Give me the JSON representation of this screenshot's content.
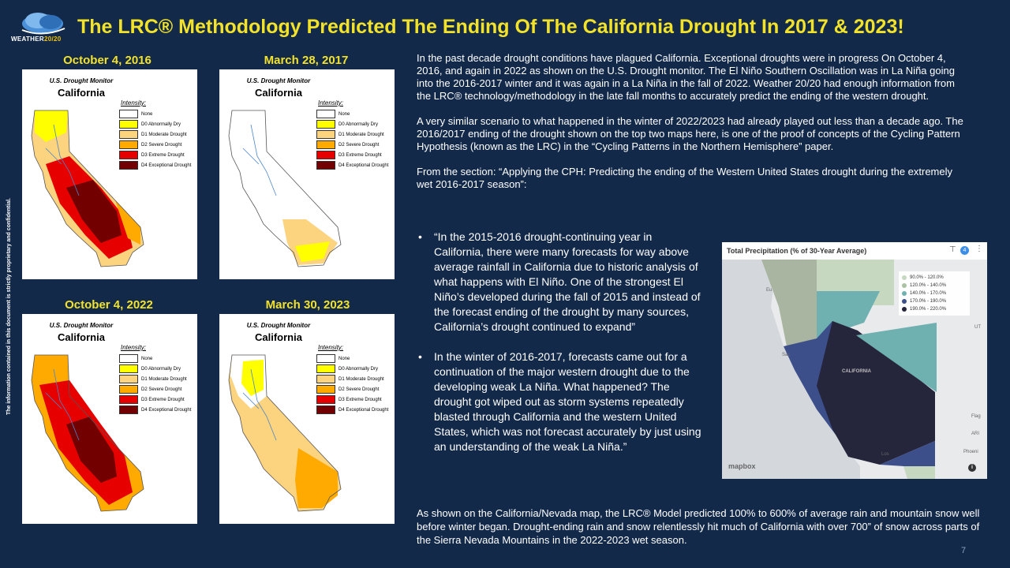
{
  "brand": {
    "word1": "WEATHER",
    "word2": "20/20"
  },
  "title": "The LRC® Methodology Predicted The Ending Of The California Drought In 2017 & 2023!",
  "side_note": "The information contained in this document is strictly proprietary and confidential.",
  "maps": [
    {
      "caption": "October 4, 2016",
      "header": "U.S. Drought Monitor",
      "state": "California",
      "scheme": "2016"
    },
    {
      "caption": "March 28, 2017",
      "header": "U.S. Drought Monitor",
      "state": "California",
      "scheme": "2017"
    },
    {
      "caption": "October 4, 2022",
      "header": "U.S. Drought Monitor",
      "state": "California",
      "scheme": "2022"
    },
    {
      "caption": "March 30, 2023",
      "header": "U.S. Drought Monitor",
      "state": "California",
      "scheme": "2023"
    }
  ],
  "legend": {
    "intensity_label": "Intensity:",
    "items": [
      {
        "label": "None",
        "color": "#ffffff"
      },
      {
        "label": "D0 Abnormally Dry",
        "color": "#ffff00"
      },
      {
        "label": "D1 Moderate Drought",
        "color": "#fcd37f"
      },
      {
        "label": "D2 Severe Drought",
        "color": "#ffaa00"
      },
      {
        "label": "D3 Extreme Drought",
        "color": "#e60000"
      },
      {
        "label": "D4 Exceptional Drought",
        "color": "#730000"
      }
    ]
  },
  "body": {
    "p1": "In the past decade drought conditions have plagued California.  Exceptional droughts were in progress On October 4, 2016, and again in 2022 as shown on the U.S. Drought monitor.  The El Niño Southern Oscillation was in La Niña going into the 2016-2017 winter and it was again in a La Niña in the fall of 2022.  Weather 20/20 had enough information from the LRC® technology/methodology in the late fall months to accurately predict the ending of the western drought.",
    "p2": "A very similar scenario to what happened in the winter of 2022/2023 had already played out less than a decade ago. The 2016/2017 ending of the drought shown on the top two maps here, is one of the proof of concepts of the Cycling Pattern Hypothesis (known as the LRC) in the “Cycling Patterns in the Northern Hemisphere” paper.",
    "p3": "From the section:  “Applying the CPH:  Predicting the ending of the Western United States drought during the extremely wet 2016-2017 season”:"
  },
  "bullets": [
    "“In the 2015-2016 drought-continuing year in California, there were many forecasts for way above average rainfall in California due to historic analysis of what happens with El Niño. One of the strongest El Niño’s developed during the fall of 2015 and instead of the forecast ending of the drought by many sources, California’s drought continued to expand”",
    "In the winter of 2016-2017, forecasts came out for a continuation of the major western drought due to the developing weak La Niña.  What happened?  The drought got wiped out as storm systems repeatedly blasted through California and the western United States, which was not forecast accurately by just using an understanding of the weak La Niña.”"
  ],
  "bullet_glyph": "•",
  "bottom": "As shown on the California/Nevada map, the LRC® Model predicted 100% to 600% of average rain and mountain snow well before winter began.  Drought-ending rain and snow relentlessly hit much of California with over 700” of snow across parts of the Sierra Nevada Mountains in the 2022-2023 wet season.",
  "page_number": "7",
  "precip_map": {
    "title": "Total Precipitation (% of 30-Year Average)",
    "filter_badge": "4",
    "menu_icon": "⋮",
    "filter_icon": "⊤",
    "state_label": "CALIFORNIA",
    "city_labels": [
      "Eu",
      "Sac",
      "UT",
      "Flag",
      "ARI",
      "Phoeni",
      "Los"
    ],
    "attribution": "mapbox",
    "info_glyph": "i",
    "legend": [
      {
        "label": "90.0% - 120.0%",
        "color": "#c6d8c0"
      },
      {
        "label": "120.0% - 140.0%",
        "color": "#a9c2a3"
      },
      {
        "label": "140.0% - 170.0%",
        "color": "#6fb0b0"
      },
      {
        "label": "170.0% - 190.0%",
        "color": "#3c4f8a"
      },
      {
        "label": "190.0% - 220.0%",
        "color": "#25253c"
      }
    ]
  }
}
